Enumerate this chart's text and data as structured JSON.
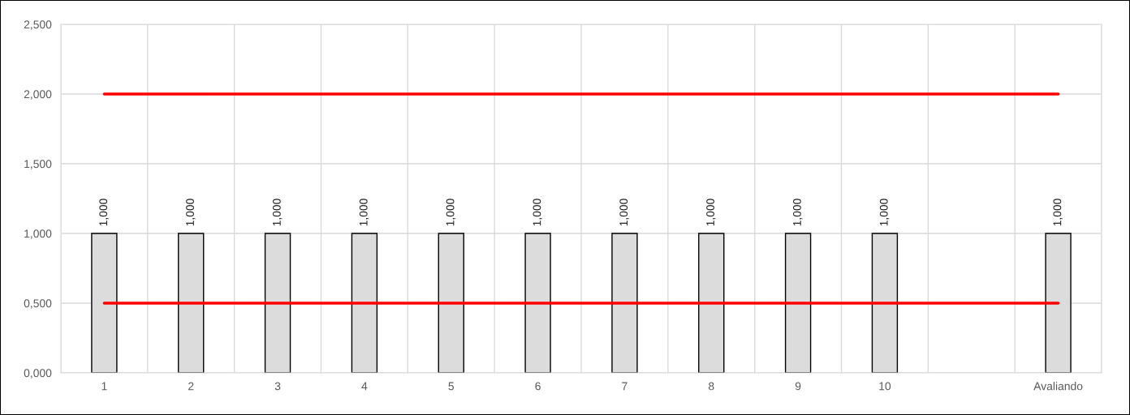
{
  "chart_data": {
    "type": "bar",
    "categories": [
      "1",
      "2",
      "3",
      "4",
      "5",
      "6",
      "7",
      "8",
      "9",
      "10",
      null,
      "Avaliando"
    ],
    "series": [
      {
        "color": "#dcdcdc",
        "values": [
          1,
          1,
          1,
          1,
          1,
          1,
          1,
          1,
          1,
          1,
          null,
          1
        ],
        "value_labels": [
          "1,000",
          "1,000",
          "1,000",
          "1,000",
          "1,000",
          "1,000",
          "1,000",
          "1,000",
          "1,000",
          "1,000",
          null,
          "1,000"
        ]
      },
      {
        "type": "line",
        "color": "#ff0000",
        "values": [
          2,
          2,
          2,
          2,
          2,
          2,
          2,
          2,
          2,
          2,
          2,
          2
        ]
      },
      {
        "type": "line",
        "color": "#ff0000",
        "values": [
          0.5,
          0.5,
          0.5,
          0.5,
          0.5,
          0.5,
          0.5,
          0.5,
          0.5,
          0.5,
          0.5,
          0.5
        ]
      }
    ],
    "ylim": [
      0,
      2.5
    ],
    "yticks": [
      {
        "value": 0,
        "label": "0,000"
      },
      {
        "value": 0.5,
        "label": "0,500"
      },
      {
        "value": 1,
        "label": "1,000"
      },
      {
        "value": 1.5,
        "label": "1,500"
      },
      {
        "value": 2,
        "label": "2,000"
      },
      {
        "value": 2.5,
        "label": "2,500"
      }
    ],
    "grid": true,
    "legend": false,
    "marker": "none",
    "line_style": "solid"
  }
}
